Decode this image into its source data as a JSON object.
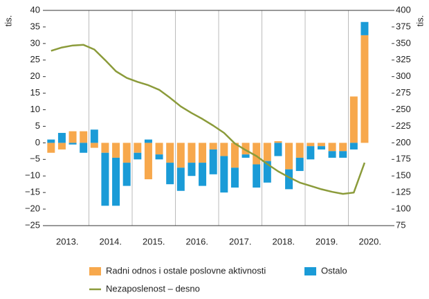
{
  "chart_data": {
    "type": "bar-line",
    "y_axis_label": "tis.",
    "y2_axis_label": "tis.",
    "categories": [
      null,
      null,
      null,
      null,
      null,
      null,
      null,
      null,
      null,
      null,
      null,
      null,
      null,
      null,
      null,
      null,
      null,
      null,
      null,
      null,
      null,
      null,
      null,
      null,
      null,
      null,
      null,
      null,
      null,
      null
    ],
    "year_labels": [
      "2013.",
      "2014.",
      "2015.",
      "2016.",
      "2017.",
      "2018.",
      "2019.",
      "2020."
    ],
    "series": [
      {
        "name": "Radni odnos i ostale poslovne aktivnosti",
        "color": "#f7a84c",
        "stacked": true,
        "values": [
          -3,
          -2,
          3.5,
          3.5,
          -1.5,
          -3,
          -4.5,
          -6,
          -3,
          -11,
          -3.5,
          -6,
          -7.5,
          -6,
          -6,
          -2,
          -4,
          -7.5,
          -3.5,
          -6.5,
          -5.5,
          0.5,
          -8,
          -4.5,
          -1,
          -1,
          -2.5,
          -2.5,
          14,
          32.5
        ]
      },
      {
        "name": "Ostalo",
        "color": "#1a9bd7",
        "stacked": true,
        "values": [
          1,
          3,
          -0.5,
          -3,
          4,
          -16,
          -14.5,
          -7,
          -2,
          1,
          -1.5,
          -6.5,
          -7,
          -4,
          -7,
          -7.5,
          -11,
          -6,
          -1,
          -7,
          -6.5,
          -4,
          -6,
          -4,
          -4,
          -1,
          -2,
          -2,
          -2,
          4
        ]
      },
      {
        "name": "Nezaposlenost – desno",
        "color": "#8b9b3a",
        "axis": "y2",
        "values": [
          339,
          344,
          347,
          348,
          341,
          325,
          308,
          298,
          292,
          287,
          280,
          268,
          255,
          245,
          236,
          226,
          215,
          199,
          189,
          180,
          168,
          157,
          148,
          140,
          135,
          130,
          126,
          123,
          125,
          170
        ]
      }
    ],
    "ylim": [
      -25,
      40
    ],
    "yticks": [
      {
        "value": -25,
        "label": "−25"
      },
      {
        "value": -20,
        "label": "−20"
      },
      {
        "value": -15,
        "label": "−15"
      },
      {
        "value": -10,
        "label": "−10"
      },
      {
        "value": -5,
        "label": "−5"
      },
      0,
      5,
      10,
      15,
      20,
      25,
      30,
      35,
      40
    ],
    "y2lim": [
      75,
      400
    ],
    "y2ticks": [
      75,
      100,
      125,
      150,
      175,
      200,
      225,
      250,
      275,
      300,
      325,
      350,
      375,
      400
    ]
  }
}
